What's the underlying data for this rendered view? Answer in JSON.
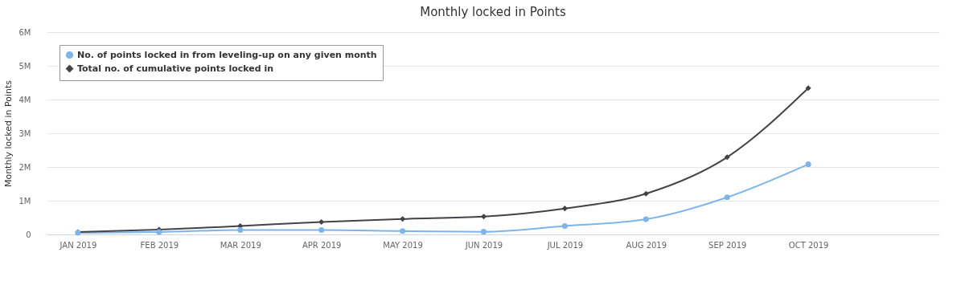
{
  "chart_data": {
    "type": "line",
    "title": "Monthly locked in Points",
    "ylabel": "Monthly locked in Points",
    "categories": [
      "JAN 2019",
      "FEB 2019",
      "MAR 2019",
      "APR 2019",
      "MAY 2019",
      "JUN 2019",
      "JUL 2019",
      "AUG 2019",
      "SEP 2019",
      "OCT 2019"
    ],
    "series": [
      {
        "name": "No. of points locked in from leveling-up on any given month",
        "color": "#7cb5ec",
        "marker": "circle",
        "values": [
          50000,
          70000,
          130000,
          130000,
          100000,
          80000,
          250000,
          450000,
          1100000,
          2080000
        ]
      },
      {
        "name": "Total no. of cumulative points locked in",
        "color": "#434348",
        "marker": "diamond",
        "values": [
          70000,
          140000,
          250000,
          370000,
          460000,
          530000,
          770000,
          1210000,
          2290000,
          4340000
        ]
      }
    ],
    "ylim": [
      0,
      6000000
    ],
    "yticks": [
      {
        "value": 0,
        "label": "0"
      },
      {
        "value": 1000000,
        "label": "1M"
      },
      {
        "value": 2000000,
        "label": "2M"
      },
      {
        "value": 3000000,
        "label": "3M"
      },
      {
        "value": 4000000,
        "label": "4M"
      },
      {
        "value": 5000000,
        "label": "5M"
      },
      {
        "value": 6000000,
        "label": "6M"
      }
    ],
    "grid": "y",
    "legend": "top left",
    "line_style": "solid"
  }
}
